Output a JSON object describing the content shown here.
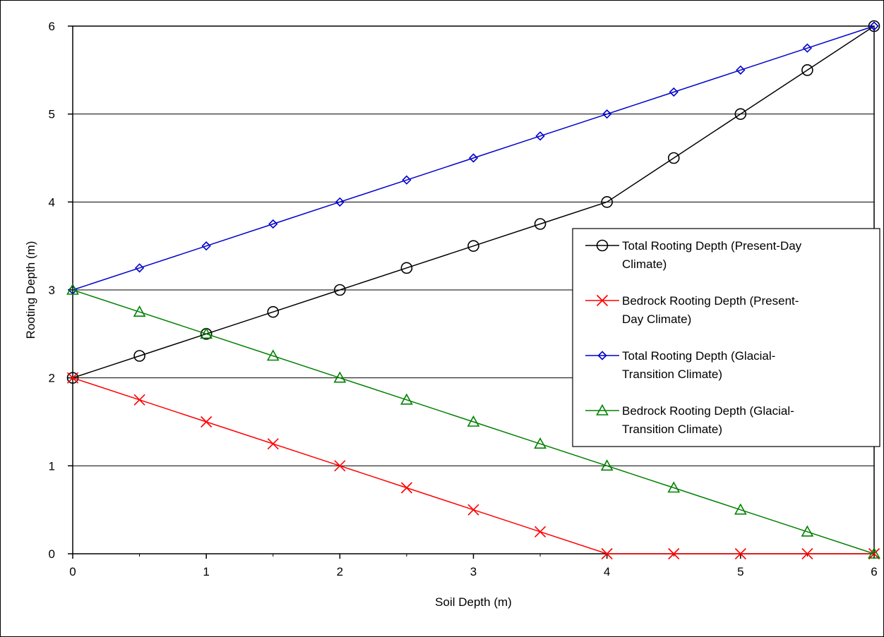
{
  "chart_data": {
    "type": "line",
    "xlabel": "Soil Depth (m)",
    "ylabel": "Rooting Depth (m)",
    "xlim": [
      0,
      6
    ],
    "ylim": [
      0,
      6
    ],
    "x_ticks": [
      "0",
      "1",
      "2",
      "3",
      "4",
      "5",
      "6"
    ],
    "y_ticks": [
      "0",
      "1",
      "2",
      "3",
      "4",
      "5",
      "6"
    ],
    "grid": "horizontal",
    "legend_position": "right",
    "x": [
      0,
      0.5,
      1,
      1.5,
      2,
      2.5,
      3,
      3.5,
      4,
      4.5,
      5,
      5.5,
      6
    ],
    "series": [
      {
        "name_lines": [
          "Total Rooting Depth (Present-Day",
          "Climate)"
        ],
        "color": "#000000",
        "marker": "circle",
        "values": [
          2,
          2.25,
          2.5,
          2.75,
          3,
          3.25,
          3.5,
          3.75,
          4,
          4.5,
          5,
          5.5,
          6
        ]
      },
      {
        "name_lines": [
          "Bedrock Rooting Depth (Present-",
          "Day Climate)"
        ],
        "color": "#ff0000",
        "marker": "x",
        "values": [
          2,
          1.75,
          1.5,
          1.25,
          1,
          0.75,
          0.5,
          0.25,
          0,
          0,
          0,
          0,
          0
        ]
      },
      {
        "name_lines": [
          "Total Rooting Depth (Glacial-",
          "Transition Climate)"
        ],
        "color": "#0000cc",
        "marker": "diamond",
        "values": [
          3,
          3.25,
          3.5,
          3.75,
          4,
          4.25,
          4.5,
          4.75,
          5,
          5.25,
          5.5,
          5.75,
          6
        ]
      },
      {
        "name_lines": [
          "Bedrock Rooting Depth (Glacial-",
          "Transition Climate)"
        ],
        "color": "#008000",
        "marker": "triangle",
        "values": [
          3,
          2.75,
          2.5,
          2.25,
          2,
          1.75,
          1.5,
          1.25,
          1,
          0.75,
          0.5,
          0.25,
          0
        ]
      }
    ]
  }
}
